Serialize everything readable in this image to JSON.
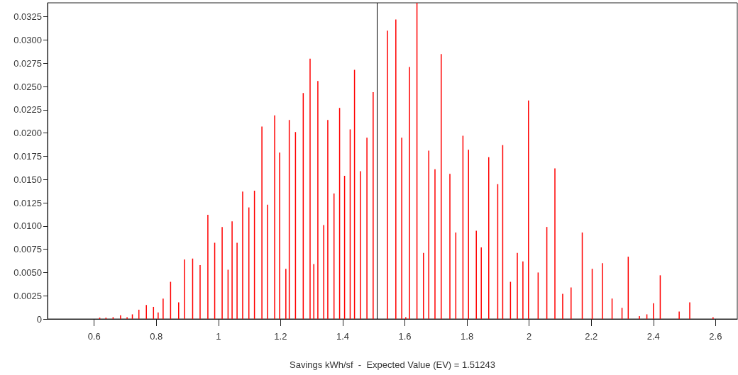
{
  "chart_data": {
    "type": "bar",
    "xlabel": "Savings kWh/sf  -  Expected Value (EV) = 1.51243",
    "x": [
      0.618,
      0.638,
      0.661,
      0.685,
      0.706,
      0.723,
      0.744,
      0.768,
      0.791,
      0.806,
      0.822,
      0.846,
      0.872,
      0.891,
      0.917,
      0.941,
      0.966,
      0.988,
      1.012,
      1.031,
      1.044,
      1.06,
      1.078,
      1.098,
      1.116,
      1.14,
      1.158,
      1.181,
      1.197,
      1.217,
      1.228,
      1.248,
      1.273,
      1.295,
      1.307,
      1.32,
      1.339,
      1.352,
      1.372,
      1.39,
      1.406,
      1.424,
      1.438,
      1.457,
      1.478,
      1.498,
      1.544,
      1.571,
      1.59,
      1.603,
      1.615,
      1.639,
      1.66,
      1.677,
      1.697,
      1.717,
      1.745,
      1.764,
      1.787,
      1.805,
      1.83,
      1.846,
      1.87,
      1.899,
      1.915,
      1.94,
      1.962,
      1.98,
      1.998,
      2.029,
      2.057,
      2.083,
      2.108,
      2.135,
      2.171,
      2.203,
      2.236,
      2.267,
      2.299,
      2.319,
      2.355,
      2.379,
      2.4,
      2.422,
      2.483,
      2.517,
      2.592
    ],
    "values": [
      0.00015,
      0.00015,
      0.0002,
      0.0004,
      0.0002,
      0.0005,
      0.001,
      0.0015,
      0.0013,
      0.0007,
      0.0022,
      0.004,
      0.0018,
      0.0064,
      0.0065,
      0.0058,
      0.0112,
      0.0082,
      0.0099,
      0.0053,
      0.0105,
      0.0082,
      0.0137,
      0.012,
      0.0138,
      0.0207,
      0.0123,
      0.0219,
      0.0179,
      0.0054,
      0.0214,
      0.0201,
      0.0243,
      0.028,
      0.0059,
      0.0256,
      0.0101,
      0.0214,
      0.0135,
      0.0227,
      0.0154,
      0.0204,
      0.0268,
      0.0159,
      0.0195,
      0.0244,
      0.031,
      0.0322,
      0.0195,
      0.0002,
      0.0271,
      0.034,
      0.0071,
      0.0181,
      0.0161,
      0.0285,
      0.0156,
      0.0093,
      0.0197,
      0.0182,
      0.0095,
      0.0077,
      0.0174,
      0.0145,
      0.0187,
      0.004,
      0.0071,
      0.0062,
      0.0235,
      0.005,
      0.0099,
      0.0162,
      0.0027,
      0.0034,
      0.0093,
      0.0054,
      0.006,
      0.0022,
      0.0012,
      0.0067,
      0.0003,
      0.0005,
      0.0017,
      0.0047,
      0.0008,
      0.0018,
      0.0002
    ],
    "color": "#ff0000",
    "xlim": [
      0.45,
      2.67
    ],
    "xticks": [
      0.6,
      0.8,
      1,
      1.2,
      1.4,
      1.6,
      1.8,
      2,
      2.2,
      2.4,
      2.6
    ],
    "ylim": [
      0,
      0.034
    ],
    "yticks": [
      0,
      0.0025,
      {
        "value": 0.005,
        "label": "0.0050"
      },
      0.0075,
      {
        "value": 0.01,
        "label": "0.0100"
      },
      0.0125,
      {
        "value": 0.015,
        "label": "0.0150"
      },
      0.0175,
      {
        "value": 0.02,
        "label": "0.0200"
      },
      0.0225,
      {
        "value": 0.025,
        "label": "0.0250"
      },
      0.0275,
      {
        "value": 0.03,
        "label": "0.0300"
      },
      0.0325
    ],
    "ref_lines": [
      {
        "axis": "x",
        "value": 1.51243,
        "label": null,
        "color": "#000000"
      }
    ]
  }
}
